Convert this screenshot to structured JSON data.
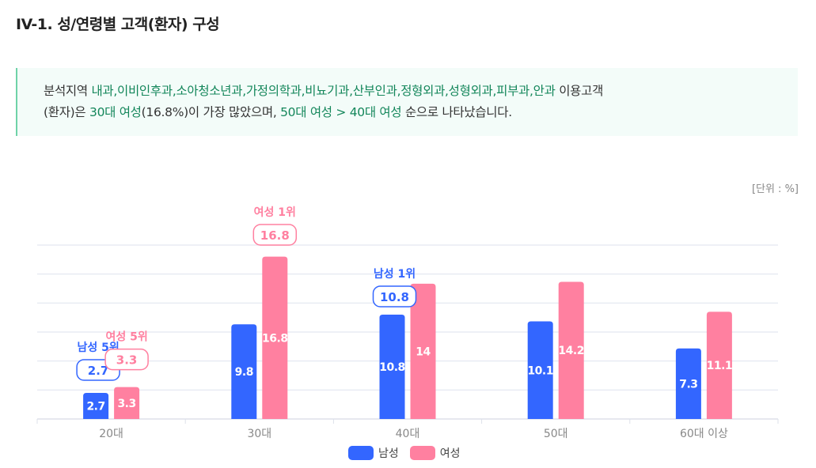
{
  "title": "IV-1. 성/연령별 고객(환자) 구성",
  "summary": {
    "p1": "분석지역 ",
    "depts": "내과,이비인후과,소아청소년과,가정의학과,비뇨기과,산부인과,정형외과,성형외과,피부과,안과",
    "p2": " 이용고객",
    "p3": "(환자)은 ",
    "hl1": "30대 여성",
    "p4": "(16.8%)이 가장 많았으며, ",
    "hl2": "50대 여성 > 40대 여성",
    "p5": " 순으로 나타났습니다."
  },
  "chart_data": {
    "type": "bar",
    "unit_label": "[단위 : %]",
    "categories": [
      "20대",
      "30대",
      "40대",
      "50대",
      "60대 이상"
    ],
    "series": [
      {
        "name": "남성",
        "color": "#3366ff",
        "values": [
          2.7,
          9.8,
          10.8,
          10.1,
          7.3
        ]
      },
      {
        "name": "여성",
        "color": "#ff80a0",
        "values": [
          3.3,
          16.8,
          14,
          14.2,
          11.1
        ]
      }
    ],
    "ylim": [
      0,
      18
    ],
    "grid_step": 3,
    "annotations": [
      {
        "series": 0,
        "index": 0,
        "label": "남성 5위",
        "value": "2.7"
      },
      {
        "series": 1,
        "index": 0,
        "label": "여성 5위",
        "value": "3.3"
      },
      {
        "series": 1,
        "index": 1,
        "label": "여성 1위",
        "value": "16.8"
      },
      {
        "series": 0,
        "index": 2,
        "label": "남성 1위",
        "value": "10.8"
      }
    ]
  }
}
